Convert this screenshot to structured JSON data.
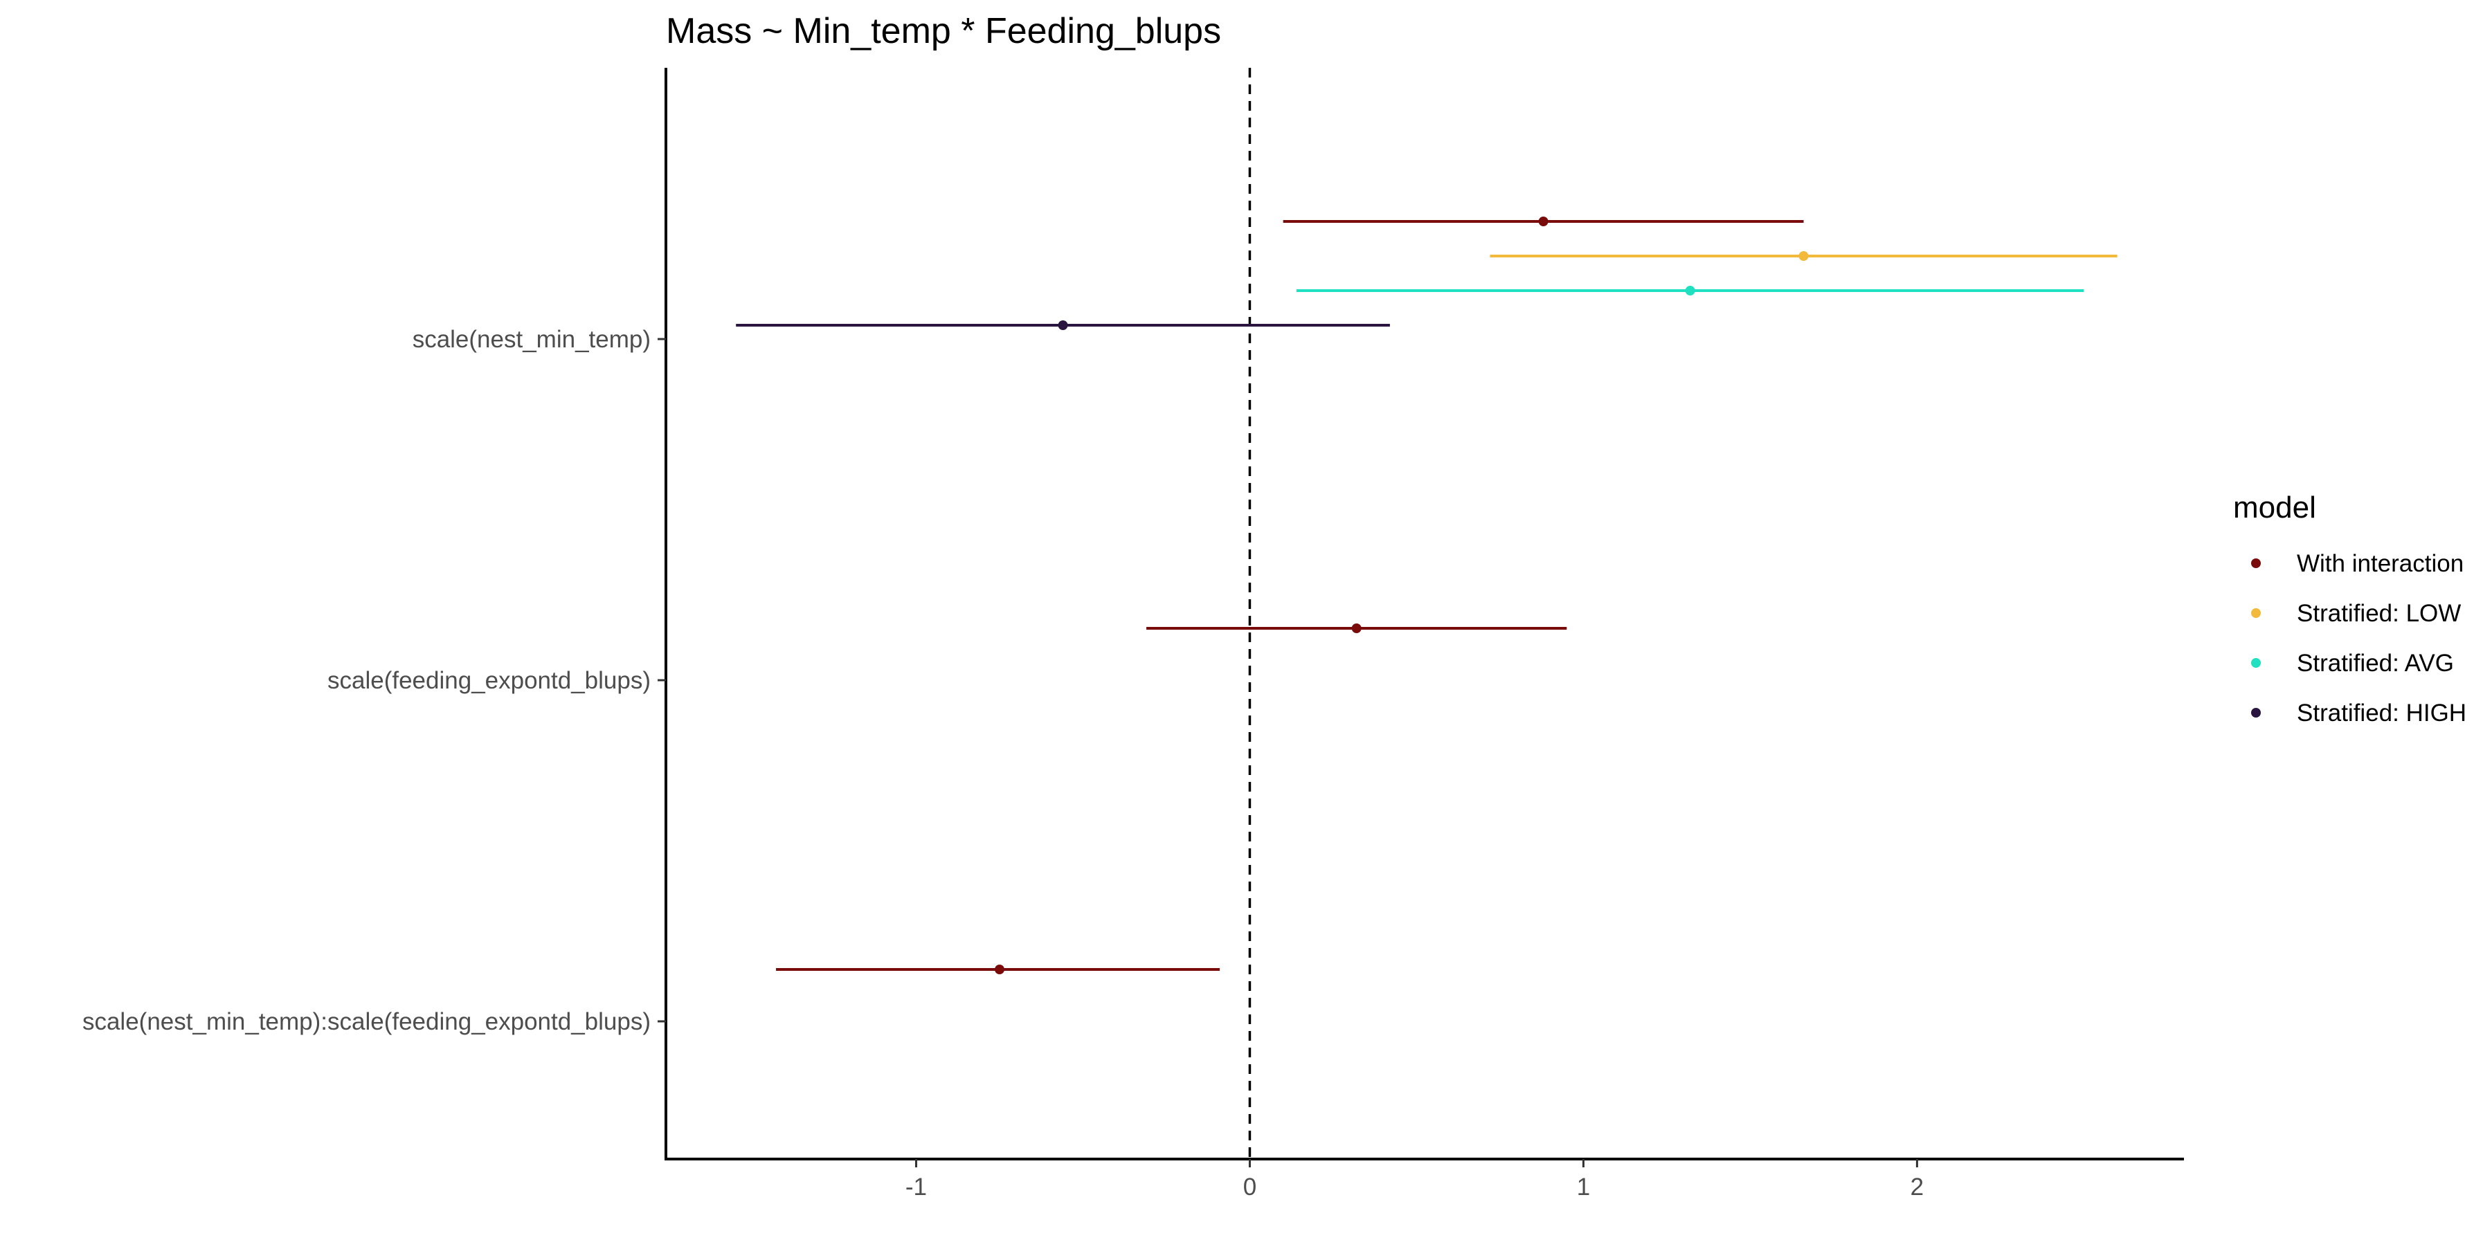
{
  "chart_data": {
    "type": "scatter",
    "subtype": "coefficient-plot",
    "title": "Mass ~ Min_temp * Feeding_blups",
    "xlabel": "",
    "ylabel": "",
    "xlim": [
      -1.75,
      2.8
    ],
    "x_ticks": [
      {
        "value": -1,
        "label": "-1"
      },
      {
        "value": 0,
        "label": "0"
      },
      {
        "value": 1,
        "label": "1"
      },
      {
        "value": 2,
        "label": "2"
      }
    ],
    "reference_line": {
      "x": 0,
      "style": "dashed"
    },
    "categories": [
      "scale(nest_min_temp)",
      "scale(feeding_expontd_blups)",
      "scale(nest_min_temp):scale(feeding_expontd_blups)"
    ],
    "legend": {
      "title": "model",
      "placement": "right"
    },
    "series": [
      {
        "name": "With interaction",
        "color": "#7a0b0b",
        "points": [
          {
            "category": "scale(nest_min_temp)",
            "estimate": 0.88,
            "low": 0.1,
            "high": 1.66
          },
          {
            "category": "scale(feeding_expontd_blups)",
            "estimate": 0.32,
            "low": -0.31,
            "high": 0.95
          },
          {
            "category": "scale(nest_min_temp):scale(feeding_expontd_blups)",
            "estimate": -0.75,
            "low": -1.42,
            "high": -0.09
          }
        ]
      },
      {
        "name": "Stratified: LOW",
        "color": "#f2b93b",
        "points": [
          {
            "category": "scale(nest_min_temp)",
            "estimate": 1.66,
            "low": 0.72,
            "high": 2.6
          }
        ]
      },
      {
        "name": "Stratified: AVG",
        "color": "#1fe0c0",
        "points": [
          {
            "category": "scale(nest_min_temp)",
            "estimate": 1.32,
            "low": 0.14,
            "high": 2.5
          }
        ]
      },
      {
        "name": "Stratified: HIGH",
        "color": "#2a1440",
        "points": [
          {
            "category": "scale(nest_min_temp)",
            "estimate": -0.56,
            "low": -1.54,
            "high": 0.42
          }
        ]
      }
    ]
  }
}
